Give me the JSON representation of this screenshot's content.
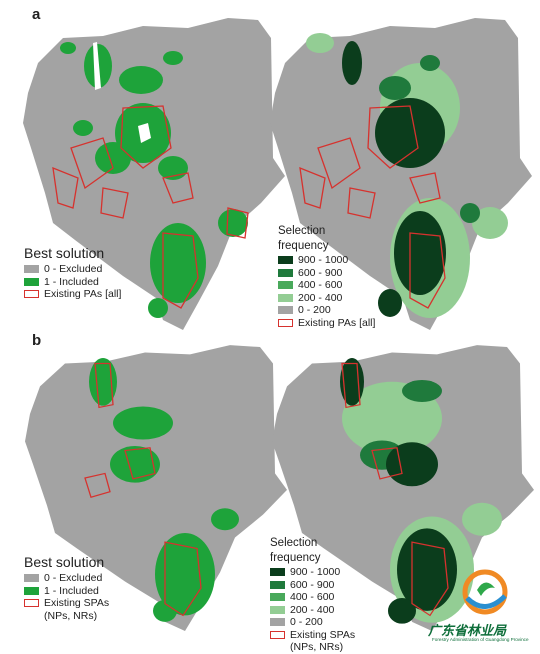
{
  "panels": [
    {
      "label": "a",
      "left_legend": {
        "title": "Best solution",
        "items": [
          {
            "label": "0 - Excluded",
            "color": "#a3a3a3",
            "outline": false
          },
          {
            "label": "1 - Included",
            "color": "#1ea33a",
            "outline": false
          },
          {
            "label": "Existing PAs [all]",
            "color": "#d6322e",
            "outline": true
          }
        ]
      },
      "right_legend": {
        "title_line1": "Selection",
        "title_line2": "frequency",
        "items": [
          {
            "label": "900 - 1000",
            "color": "#0b3d1c",
            "outline": false
          },
          {
            "label": "600 - 900",
            "color": "#1f7a3c",
            "outline": false
          },
          {
            "label": "400 - 600",
            "color": "#49a95b",
            "outline": false
          },
          {
            "label": "200 - 400",
            "color": "#93cd94",
            "outline": false
          },
          {
            "label": "0 - 200",
            "color": "#a3a3a3",
            "outline": false
          },
          {
            "label": "Existing PAs [all]",
            "color": "#d6322e",
            "outline": true
          }
        ]
      }
    },
    {
      "label": "b",
      "left_legend": {
        "title": "Best solution",
        "items": [
          {
            "label": "0 - Excluded",
            "color": "#a3a3a3",
            "outline": false
          },
          {
            "label": "1 - Included",
            "color": "#1ea33a",
            "outline": false
          },
          {
            "label": "Existing SPAs",
            "color": "#d6322e",
            "outline": true
          },
          {
            "label": "(NPs, NRs)",
            "color": "",
            "outline": false
          }
        ]
      },
      "right_legend": {
        "title_line1": "Selection",
        "title_line2": "frequency",
        "items": [
          {
            "label": "900 - 1000",
            "color": "#0b3d1c",
            "outline": false
          },
          {
            "label": "600 - 900",
            "color": "#1f7a3c",
            "outline": false
          },
          {
            "label": "400 - 600",
            "color": "#49a95b",
            "outline": false
          },
          {
            "label": "200 - 400",
            "color": "#93cd94",
            "outline": false
          },
          {
            "label": "0 - 200",
            "color": "#a3a3a3",
            "outline": false
          },
          {
            "label": "Existing SPAs",
            "color": "#d6322e",
            "outline": true
          },
          {
            "label": "(NPs, NRs)",
            "color": "",
            "outline": false
          }
        ]
      }
    }
  ],
  "watermark": {
    "name": "广东省林业局",
    "subtitle": "Forestry Administration of Guangdong Province"
  },
  "colors": {
    "land": "#a3a3a3",
    "included": "#1ea33a",
    "freq_high": "#0b3d1c",
    "freq_mid": "#1f7a3c",
    "freq_low": "#93cd94",
    "pa_outline": "#d6322e",
    "water": "#ffffff"
  }
}
